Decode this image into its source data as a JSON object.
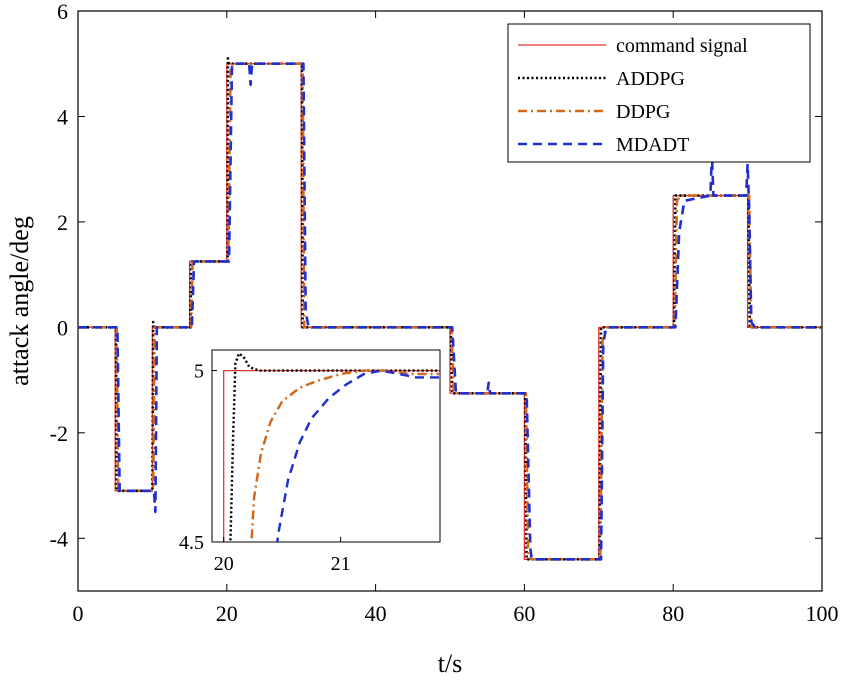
{
  "chart_data": {
    "type": "line",
    "title": "",
    "xlabel": "t/s",
    "ylabel": "attack angle/deg",
    "xlim": [
      0,
      100
    ],
    "ylim": [
      -5,
      6
    ],
    "xticks": [
      0,
      20,
      40,
      60,
      80,
      100
    ],
    "yticks": [
      -4,
      -2,
      0,
      2,
      4,
      6
    ],
    "xtick_labels": [
      "0",
      "20",
      "40",
      "60",
      "80",
      "100"
    ],
    "ytick_labels": [
      "-4",
      "-2",
      "0",
      "2",
      "4",
      "6"
    ],
    "grid": false,
    "legend_position": "top-right",
    "series": [
      {
        "name": "command signal",
        "color": "#e03030",
        "style": "solid",
        "points": [
          [
            0,
            0
          ],
          [
            5,
            0
          ],
          [
            5,
            -3.1
          ],
          [
            10,
            -3.1
          ],
          [
            10,
            0
          ],
          [
            15,
            0
          ],
          [
            15,
            1.25
          ],
          [
            20,
            1.25
          ],
          [
            20,
            5
          ],
          [
            30,
            5
          ],
          [
            30,
            0
          ],
          [
            50,
            0
          ],
          [
            50,
            -1.25
          ],
          [
            60,
            -1.25
          ],
          [
            60,
            -4.4
          ],
          [
            70,
            -4.4
          ],
          [
            70,
            0
          ],
          [
            80,
            0
          ],
          [
            80,
            2.5
          ],
          [
            90,
            2.5
          ],
          [
            90,
            0
          ],
          [
            100,
            0
          ]
        ]
      },
      {
        "name": "ADDPG",
        "color": "#000000",
        "style": "dotted",
        "points": [
          [
            0,
            0
          ],
          [
            5.1,
            0
          ],
          [
            5.2,
            -3.1
          ],
          [
            10,
            -3.1
          ],
          [
            10.1,
            0.1
          ],
          [
            10.3,
            0
          ],
          [
            15.1,
            0
          ],
          [
            15.2,
            1.25
          ],
          [
            20.1,
            1.25
          ],
          [
            20.15,
            5.1
          ],
          [
            20.3,
            5
          ],
          [
            30.1,
            5
          ],
          [
            30.2,
            0
          ],
          [
            50.1,
            0
          ],
          [
            50.3,
            -1.25
          ],
          [
            60.1,
            -1.25
          ],
          [
            60.3,
            -4.4
          ],
          [
            70.1,
            -4.4
          ],
          [
            70.3,
            0
          ],
          [
            80.1,
            0
          ],
          [
            80.3,
            2.5
          ],
          [
            90.1,
            2.5
          ],
          [
            90.3,
            0
          ],
          [
            100,
            0
          ]
        ]
      },
      {
        "name": "DDPG",
        "color": "#d2691e",
        "style": "dashdot",
        "points": [
          [
            0,
            0
          ],
          [
            5.2,
            0
          ],
          [
            5.4,
            -3.1
          ],
          [
            10.1,
            -3.1
          ],
          [
            10.3,
            0
          ],
          [
            15.2,
            0
          ],
          [
            15.4,
            1.25
          ],
          [
            20.2,
            1.25
          ],
          [
            20.5,
            4.95
          ],
          [
            20.8,
            5
          ],
          [
            30.2,
            5
          ],
          [
            30.4,
            0
          ],
          [
            50.2,
            0
          ],
          [
            50.5,
            -1.2
          ],
          [
            50.7,
            -1.25
          ],
          [
            60.2,
            -1.25
          ],
          [
            60.5,
            -4.35
          ],
          [
            61,
            -4.4
          ],
          [
            70.2,
            -4.4
          ],
          [
            70.5,
            -0.2
          ],
          [
            71,
            0
          ],
          [
            80.2,
            0
          ],
          [
            80.5,
            2.4
          ],
          [
            81,
            2.5
          ],
          [
            90.2,
            2.5
          ],
          [
            90.5,
            0
          ],
          [
            100,
            0
          ]
        ]
      },
      {
        "name": "MDADT",
        "color": "#1f2fd0",
        "style": "dashed",
        "points": [
          [
            0,
            0
          ],
          [
            5.3,
            0
          ],
          [
            5.6,
            -3.1
          ],
          [
            10.2,
            -3.1
          ],
          [
            10.4,
            -3.5
          ],
          [
            10.6,
            0
          ],
          [
            15.3,
            0
          ],
          [
            15.6,
            1.25
          ],
          [
            20.3,
            1.25
          ],
          [
            20.7,
            5
          ],
          [
            23,
            5
          ],
          [
            23.2,
            4.6
          ],
          [
            23.4,
            5
          ],
          [
            30.3,
            5
          ],
          [
            30.6,
            0.3
          ],
          [
            31,
            0
          ],
          [
            50.3,
            0
          ],
          [
            50.8,
            -1.25
          ],
          [
            55,
            -1.25
          ],
          [
            55.2,
            -1.05
          ],
          [
            55.4,
            -1.25
          ],
          [
            60.3,
            -1.25
          ],
          [
            60.8,
            -4.2
          ],
          [
            61,
            -4.4
          ],
          [
            70.3,
            -4.4
          ],
          [
            70.6,
            -0.3
          ],
          [
            71,
            0
          ],
          [
            80.3,
            0
          ],
          [
            80.8,
            1.8
          ],
          [
            81.5,
            2.4
          ],
          [
            85,
            2.5
          ],
          [
            85.2,
            3.3
          ],
          [
            85.4,
            2.5
          ],
          [
            89.8,
            2.5
          ],
          [
            90,
            3.1
          ],
          [
            90.2,
            2.3
          ],
          [
            90.5,
            0.1
          ],
          [
            91,
            0
          ],
          [
            100,
            0
          ]
        ]
      }
    ],
    "inset": {
      "xlim": [
        19.9,
        21.85
      ],
      "ylim": [
        4.5,
        5.06
      ],
      "xticks": [
        20,
        21
      ],
      "yticks": [
        4.5,
        5
      ],
      "xtick_labels": [
        "20",
        "21"
      ],
      "ytick_labels": [
        "4.5",
        "5"
      ],
      "series": [
        {
          "name": "command signal",
          "points": [
            [
              20,
              4.4
            ],
            [
              20,
              5
            ],
            [
              21.85,
              5
            ]
          ]
        },
        {
          "name": "ADDPG",
          "points": [
            [
              20.05,
              4.4
            ],
            [
              20.08,
              4.8
            ],
            [
              20.1,
              5.02
            ],
            [
              20.13,
              5.05
            ],
            [
              20.17,
              5.04
            ],
            [
              20.22,
              5.01
            ],
            [
              20.3,
              5.0
            ],
            [
              21.85,
              5.0
            ]
          ]
        },
        {
          "name": "DDPG",
          "points": [
            [
              20.22,
              4.4
            ],
            [
              20.26,
              4.63
            ],
            [
              20.32,
              4.76
            ],
            [
              20.4,
              4.85
            ],
            [
              20.5,
              4.91
            ],
            [
              20.65,
              4.95
            ],
            [
              20.8,
              4.97
            ],
            [
              21.0,
              4.99
            ],
            [
              21.2,
              5.0
            ],
            [
              21.4,
              5.0
            ],
            [
              21.6,
              4.99
            ],
            [
              21.85,
              4.99
            ]
          ]
        },
        {
          "name": "MDADT",
          "points": [
            [
              20.42,
              4.4
            ],
            [
              20.47,
              4.53
            ],
            [
              20.55,
              4.68
            ],
            [
              20.65,
              4.79
            ],
            [
              20.75,
              4.86
            ],
            [
              20.9,
              4.92
            ],
            [
              21.05,
              4.96
            ],
            [
              21.2,
              4.99
            ],
            [
              21.35,
              5.0
            ],
            [
              21.5,
              4.99
            ],
            [
              21.65,
              4.98
            ],
            [
              21.85,
              4.98
            ]
          ]
        }
      ]
    }
  }
}
